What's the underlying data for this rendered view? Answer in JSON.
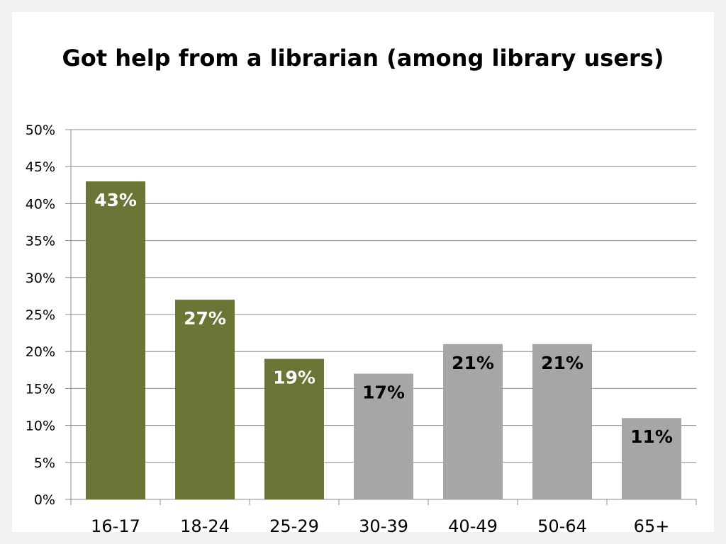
{
  "chart_data": {
    "type": "bar",
    "title": "Got help from a librarian (among library users)",
    "xlabel": "",
    "ylabel": "",
    "categories": [
      "16-17",
      "18-24",
      "25-29",
      "30-39",
      "40-49",
      "50-64",
      "65+"
    ],
    "values": [
      43,
      27,
      19,
      17,
      21,
      21,
      11
    ],
    "data_labels": [
      "43%",
      "27%",
      "19%",
      "17%",
      "21%",
      "21%",
      "11%"
    ],
    "ylim": [
      0,
      50
    ],
    "y_ticks": [
      0,
      5,
      10,
      15,
      20,
      25,
      30,
      35,
      40,
      45,
      50
    ],
    "y_tick_labels": [
      "0%",
      "5%",
      "10%",
      "15%",
      "20%",
      "25%",
      "30%",
      "35%",
      "40%",
      "45%",
      "50%"
    ],
    "grid": true,
    "legend": "none",
    "bar_colors": [
      "#6b7535",
      "#6b7535",
      "#6b7535",
      "#a6a6a6",
      "#a6a6a6",
      "#a6a6a6",
      "#a6a6a6"
    ],
    "label_colors": [
      "#ffffff",
      "#ffffff",
      "#ffffff",
      "#000000",
      "#000000",
      "#000000",
      "#000000"
    ]
  }
}
